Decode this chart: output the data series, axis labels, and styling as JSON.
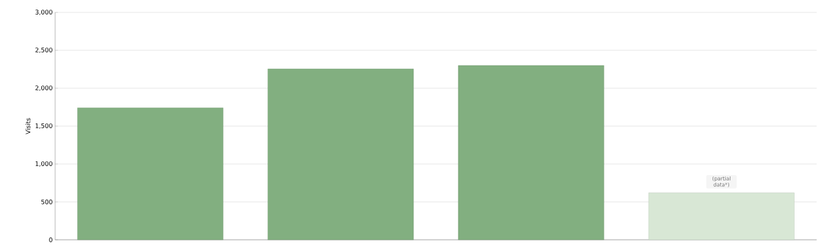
{
  "chart_data": {
    "type": "bar",
    "ylabel": "Visits",
    "categories": [
      null,
      null,
      null,
      null
    ],
    "values": [
      1740,
      2255,
      2300,
      620
    ],
    "colors": [
      "#82af80",
      "#82af80",
      "#82af80",
      "#d8e7d5"
    ],
    "annotations": [
      {
        "text": "(partial data*)",
        "y": 620
      }
    ],
    "ylim": [
      0,
      3000
    ],
    "yticks": [
      0,
      500,
      {
        "value": 1000,
        "label": "1,000"
      },
      {
        "value": 1500,
        "label": "1,500"
      },
      {
        "value": 2000,
        "label": "2,000"
      },
      {
        "value": 2500,
        "label": "2,500"
      },
      {
        "value": 3000,
        "label": "3,000"
      }
    ],
    "grid": "y"
  }
}
